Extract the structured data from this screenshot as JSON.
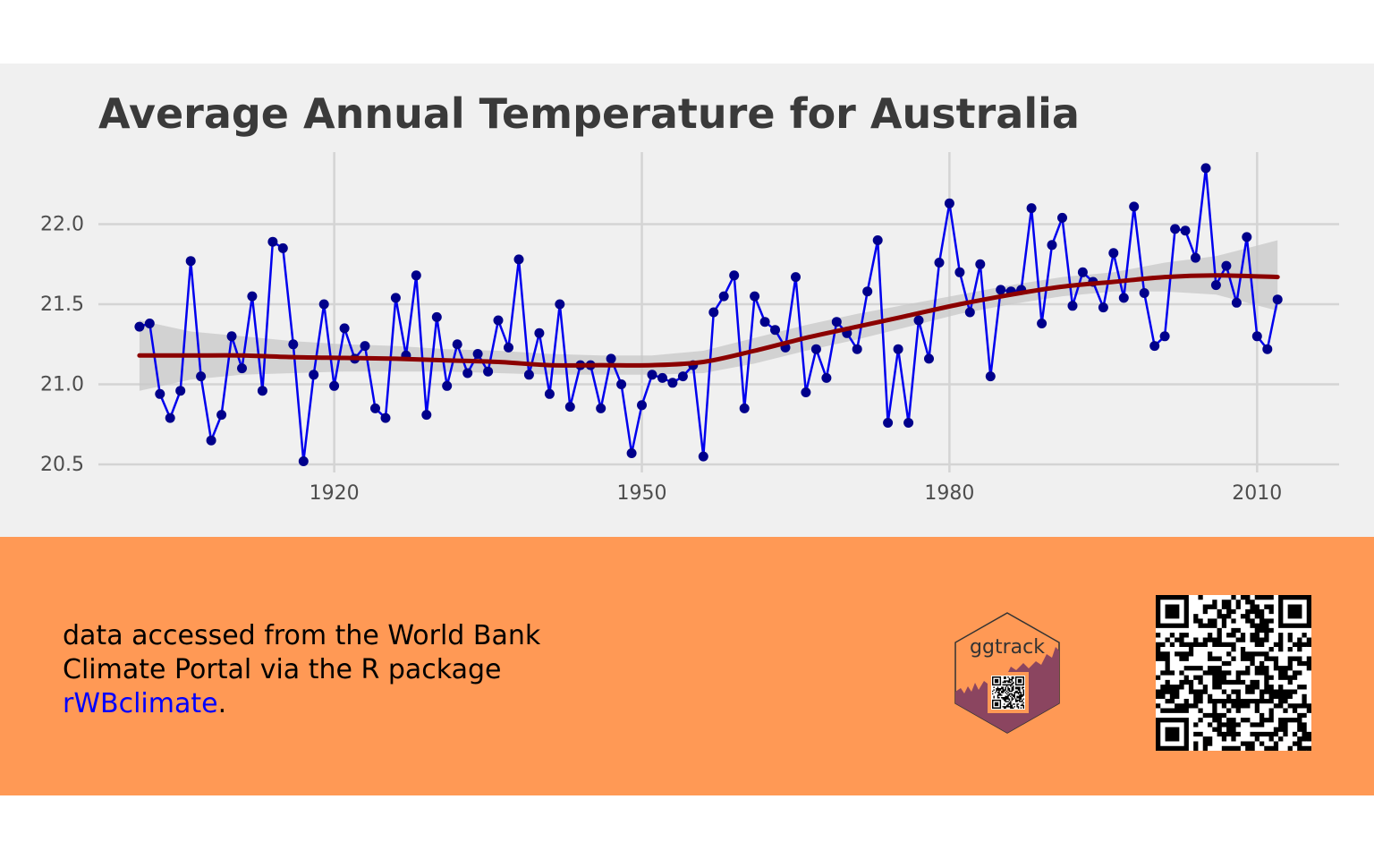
{
  "chart_data": {
    "type": "line",
    "title": "Average Annual Temperature for Australia",
    "xlabel": "",
    "ylabel": "",
    "xlim": [
      1897,
      2018
    ],
    "ylim": [
      20.45,
      22.45
    ],
    "x_ticks": [
      1920,
      1950,
      1980,
      2010
    ],
    "y_ticks": [
      20.5,
      21.0,
      21.5,
      22.0
    ],
    "grid": true,
    "series": [
      {
        "kind": "observed",
        "line_color": "#0000ee",
        "point_color": "#00008b",
        "x": [
          1901,
          1902,
          1903,
          1904,
          1905,
          1906,
          1907,
          1908,
          1909,
          1910,
          1911,
          1912,
          1913,
          1914,
          1915,
          1916,
          1917,
          1918,
          1919,
          1920,
          1921,
          1922,
          1923,
          1924,
          1925,
          1926,
          1927,
          1928,
          1929,
          1930,
          1931,
          1932,
          1933,
          1934,
          1935,
          1936,
          1937,
          1938,
          1939,
          1940,
          1941,
          1942,
          1943,
          1944,
          1945,
          1946,
          1947,
          1948,
          1949,
          1950,
          1951,
          1952,
          1953,
          1954,
          1955,
          1956,
          1957,
          1958,
          1959,
          1960,
          1961,
          1962,
          1963,
          1964,
          1965,
          1966,
          1967,
          1968,
          1969,
          1970,
          1971,
          1972,
          1973,
          1974,
          1975,
          1976,
          1977,
          1978,
          1979,
          1980,
          1981,
          1982,
          1983,
          1984,
          1985,
          1986,
          1987,
          1988,
          1989,
          1990,
          1991,
          1992,
          1993,
          1994,
          1995,
          1996,
          1997,
          1998,
          1999,
          2000,
          2001,
          2002,
          2003,
          2004,
          2005,
          2006,
          2007,
          2008,
          2009,
          2010,
          2011,
          2012
        ],
        "y": [
          21.36,
          21.38,
          20.94,
          20.79,
          20.96,
          21.77,
          21.05,
          20.65,
          20.81,
          21.3,
          21.1,
          21.55,
          20.96,
          21.89,
          21.85,
          21.25,
          20.52,
          21.06,
          21.5,
          20.99,
          21.35,
          21.16,
          21.24,
          20.85,
          20.79,
          21.54,
          21.18,
          21.68,
          20.81,
          21.42,
          20.99,
          21.25,
          21.07,
          21.19,
          21.08,
          21.4,
          21.23,
          21.78,
          21.06,
          21.32,
          20.94,
          21.5,
          20.86,
          21.12,
          21.12,
          20.85,
          21.16,
          21.0,
          20.57,
          20.87,
          21.06,
          21.04,
          21.01,
          21.05,
          21.12,
          20.55,
          21.45,
          21.55,
          21.68,
          20.85,
          21.55,
          21.39,
          21.34,
          21.23,
          21.67,
          20.95,
          21.22,
          21.04,
          21.39,
          21.32,
          21.22,
          21.58,
          21.9,
          20.76,
          21.22,
          20.76,
          21.4,
          21.16,
          21.76,
          22.13,
          21.7,
          21.45,
          21.75,
          21.05,
          21.59,
          21.58,
          21.59,
          22.1,
          21.38,
          21.87,
          22.04,
          21.49,
          21.7,
          21.64,
          21.48,
          21.82,
          21.54,
          22.11,
          21.57,
          21.24,
          21.3,
          21.97,
          21.96,
          21.79,
          22.35,
          21.62,
          21.74,
          21.51,
          21.92,
          21.3,
          21.22,
          21.53
        ]
      },
      {
        "kind": "smooth",
        "line_color": "#8b0000",
        "band_color": "#c8c8c8",
        "x": [
          1901,
          1906,
          1911,
          1916,
          1921,
          1926,
          1931,
          1936,
          1941,
          1946,
          1951,
          1956,
          1961,
          1966,
          1971,
          1976,
          1981,
          1986,
          1991,
          1996,
          2001,
          2006,
          2012
        ],
        "y": [
          21.18,
          21.18,
          21.18,
          21.17,
          21.165,
          21.16,
          21.15,
          21.14,
          21.12,
          21.12,
          21.12,
          21.14,
          21.21,
          21.29,
          21.36,
          21.43,
          21.5,
          21.56,
          21.61,
          21.64,
          21.67,
          21.68,
          21.67
        ],
        "lower": [
          20.96,
          21.03,
          21.06,
          21.07,
          21.08,
          21.08,
          21.08,
          21.07,
          21.06,
          21.06,
          21.06,
          21.07,
          21.13,
          21.21,
          21.28,
          21.36,
          21.44,
          21.5,
          21.55,
          21.58,
          21.58,
          21.56,
          21.46
        ],
        "upper": [
          21.4,
          21.33,
          21.3,
          21.27,
          21.25,
          21.24,
          21.22,
          21.21,
          21.19,
          21.18,
          21.18,
          21.21,
          21.29,
          21.37,
          21.44,
          21.5,
          21.56,
          21.62,
          21.67,
          21.7,
          21.76,
          21.8,
          21.9
        ]
      }
    ]
  },
  "caption": {
    "text_before_link": "data accessed from the World Bank Climate Portal via the R package ",
    "link_text": "rWBclimate",
    "text_after_link": "."
  },
  "logo": {
    "text": "ggtrack"
  },
  "colors": {
    "panel_background": "#f0f0f0",
    "footer_background": "#ff9955",
    "title_color": "#3a3a3a",
    "link_color": "#0000ff"
  }
}
